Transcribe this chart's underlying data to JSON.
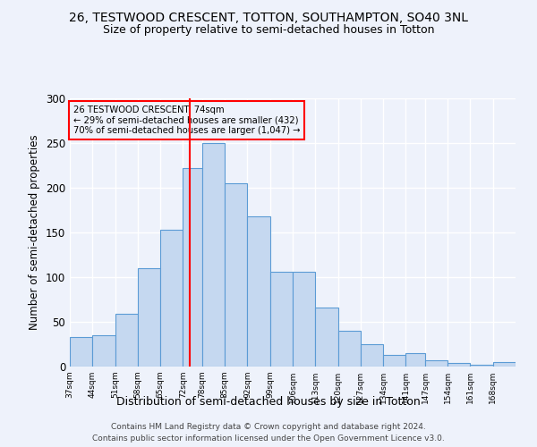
{
  "title": "26, TESTWOOD CRESCENT, TOTTON, SOUTHAMPTON, SO40 3NL",
  "subtitle": "Size of property relative to semi-detached houses in Totton",
  "xlabel": "Distribution of semi-detached houses by size in Totton",
  "ylabel": "Number of semi-detached properties",
  "annotation_line1": "26 TESTWOOD CRESCENT: 74sqm",
  "annotation_line2": "← 29% of semi-detached houses are smaller (432)",
  "annotation_line3": "70% of semi-detached houses are larger (1,047) →",
  "footer_line1": "Contains HM Land Registry data © Crown copyright and database right 2024.",
  "footer_line2": "Contains public sector information licensed under the Open Government Licence v3.0.",
  "bar_edges": [
    37,
    44,
    51,
    58,
    65,
    72,
    78,
    85,
    92,
    99,
    106,
    113,
    120,
    127,
    134,
    141,
    147,
    154,
    161,
    168,
    175
  ],
  "bar_heights": [
    33,
    35,
    59,
    110,
    153,
    222,
    250,
    205,
    168,
    106,
    106,
    66,
    40,
    25,
    13,
    15,
    7,
    4,
    2,
    5
  ],
  "bar_color": "#c5d8f0",
  "bar_edge_color": "#5b9bd5",
  "red_line_x": 74,
  "ylim": [
    0,
    300
  ],
  "yticks": [
    0,
    50,
    100,
    150,
    200,
    250,
    300
  ],
  "background_color": "#eef2fb",
  "grid_color": "#ffffff",
  "title_fontsize": 10,
  "subtitle_fontsize": 9,
  "xlabel_fontsize": 9,
  "ylabel_fontsize": 8.5
}
